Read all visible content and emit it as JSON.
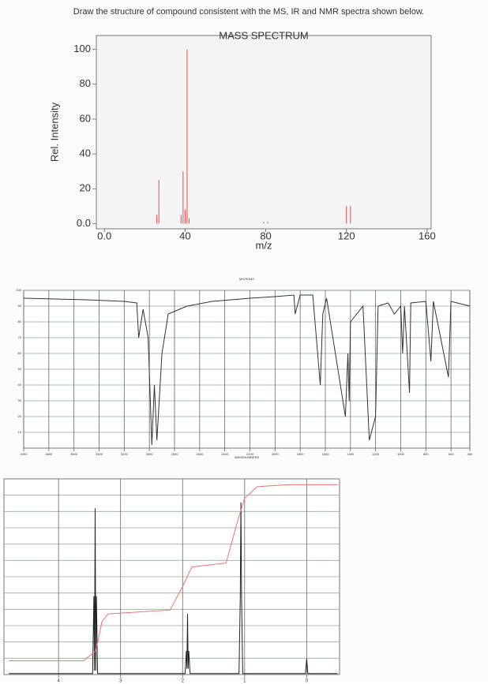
{
  "instruction": "Draw the structure of compound consistent with the MS, IR and NMR spectra shown below.",
  "chart_data": [
    {
      "type": "bar",
      "title": "MASS SPECTRUM",
      "y_label": "Rel. Intensity",
      "x_label": "m/z",
      "color": "#e0504a",
      "x": [
        26,
        27,
        38,
        39,
        40,
        41,
        42,
        79,
        81,
        120,
        122
      ],
      "values": [
        5,
        25,
        5,
        30,
        8,
        100,
        3,
        1,
        1,
        10,
        10
      ],
      "xlim": [
        -4,
        162
      ],
      "ylim": [
        -3,
        108
      ],
      "xticks": [
        {
          "value": 0,
          "label": "0.0"
        },
        40,
        80,
        120,
        160
      ],
      "yticks": [
        {
          "value": 0,
          "label": "0.0"
        },
        20,
        40,
        60,
        80,
        100
      ]
    },
    {
      "type": "line",
      "title": "MICRONS",
      "x_label": "WAVENUMBERS",
      "color": "#333333",
      "grid": true,
      "x": [
        4000,
        3500,
        3200,
        3100,
        3085,
        3050,
        3010,
        2980,
        2960,
        2940,
        2900,
        2850,
        2700,
        2500,
        2200,
        2000,
        1850,
        1840,
        1800,
        1700,
        1640,
        1620,
        1590,
        1440,
        1420,
        1410,
        1400,
        1300,
        1250,
        1200,
        1180,
        1100,
        1050,
        1000,
        985,
        970,
        930,
        920,
        800,
        760,
        740,
        620,
        600,
        450
      ],
      "values": [
        95,
        94,
        93,
        92,
        70,
        88,
        70,
        2,
        40,
        5,
        60,
        85,
        90,
        93,
        95,
        96,
        97,
        85,
        97,
        97,
        40,
        85,
        95,
        20,
        60,
        30,
        80,
        90,
        5,
        20,
        90,
        92,
        85,
        90,
        60,
        90,
        35,
        92,
        93,
        55,
        93,
        45,
        93,
        90
      ],
      "xlim": [
        4000,
        450
      ],
      "ylim": [
        0,
        100
      ],
      "xticks": [
        4000,
        3800,
        3600,
        3400,
        3200,
        3000,
        2800,
        2600,
        2400,
        2200,
        2000,
        1800,
        1600,
        1400,
        1200,
        1000,
        800,
        600,
        450
      ],
      "yticks": [
        10,
        20,
        30,
        40,
        50,
        60,
        70,
        80,
        90,
        100
      ]
    },
    {
      "type": "line",
      "grid": true,
      "xlim": [
        4.88,
        -0.53
      ],
      "ylim": [
        0,
        100
      ],
      "xticks": [
        4,
        3,
        2,
        1,
        0
      ],
      "series": [
        {
          "color": "#222222",
          "x": [
            4.8,
            3.45,
            3.43,
            3.42,
            3.41,
            3.4,
            3.39,
            3.37,
            1.96,
            1.94,
            1.93,
            1.92,
            1.91,
            1.9,
            1.88,
            1.09,
            1.07,
            1.06,
            1.05,
            1.03,
            0.02,
            0,
            -0.02,
            -0.5
          ],
          "values": [
            0.5,
            0.5,
            40,
            2,
            85,
            2,
            40,
            0.5,
            0.5,
            12,
            3,
            31,
            3,
            12,
            0.5,
            0.5,
            40,
            88,
            40,
            0.5,
            0.5,
            8,
            0.5,
            0.5
          ]
        },
        {
          "color": "#f07070",
          "x": [
            4.8,
            3.6,
            3.4,
            3.3,
            3.2,
            2.2,
            2.0,
            1.85,
            1.3,
            1.1,
            1.0,
            0.9,
            0.8,
            0.3,
            -0.5
          ],
          "values": [
            7,
            7,
            12,
            27,
            31,
            33,
            45,
            55,
            57,
            80,
            90,
            93,
            96,
            97,
            97
          ]
        }
      ]
    }
  ]
}
